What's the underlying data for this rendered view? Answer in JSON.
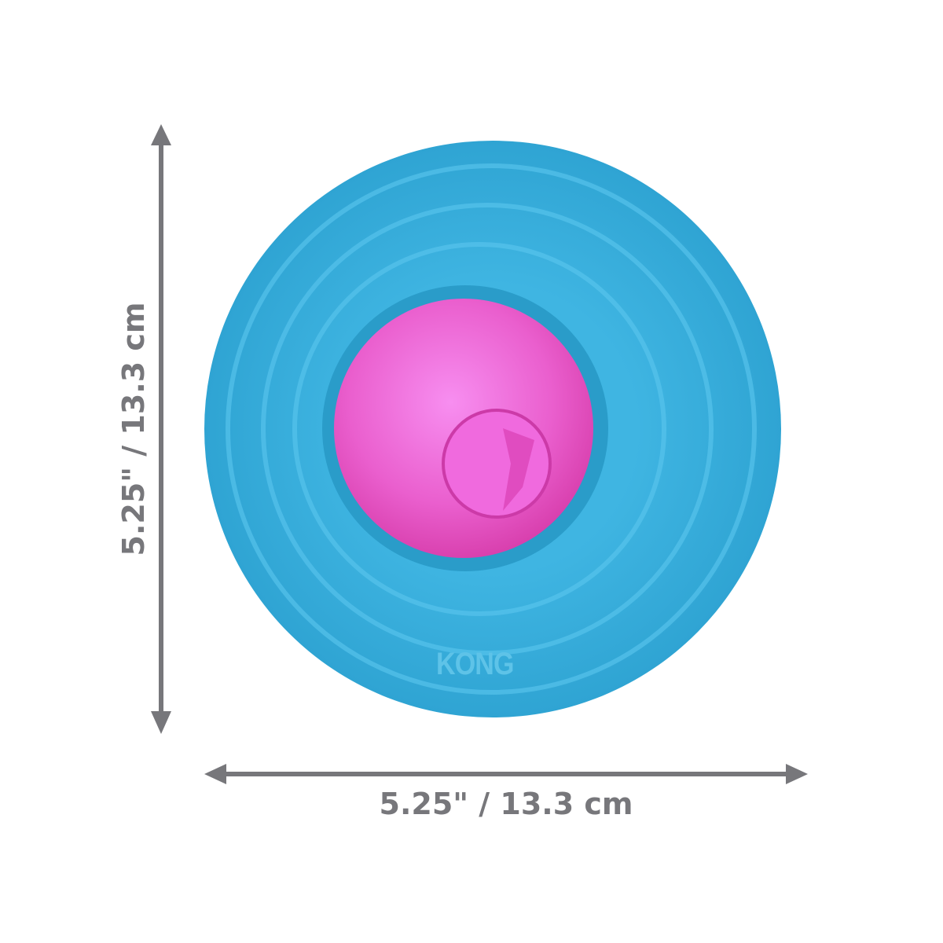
{
  "dimensions": {
    "width_label": "5.25\" / 13.3 cm",
    "height_label": "5.25\" / 13.3 cm"
  },
  "product": {
    "logo_text": "KONG"
  },
  "colors": {
    "ring": "#3bb3e0",
    "center": "#e85cc9",
    "dimension": "#77777b"
  }
}
